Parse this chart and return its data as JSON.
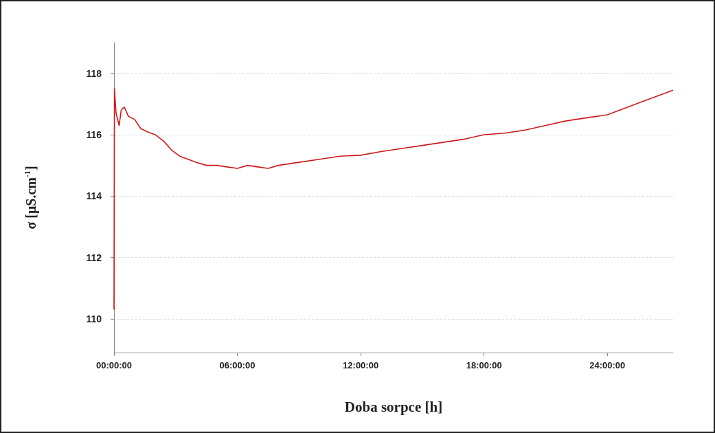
{
  "chart_data": {
    "type": "line",
    "xlabel": "Doba sorpce [h]",
    "ylabel": "σ [μS.cm$^{-1}$]",
    "series": [
      {
        "color": "#cc1a1a",
        "x": [
          0,
          0.02,
          0.1,
          0.25,
          0.35,
          0.5,
          0.7,
          1,
          1.3,
          1.6,
          2,
          2.4,
          2.8,
          3.2,
          3.6,
          4,
          4.5,
          5,
          5.5,
          6,
          6.5,
          7,
          7.5,
          8,
          9,
          10,
          11,
          12,
          13,
          14,
          15,
          16,
          17,
          18,
          19,
          20,
          21,
          22,
          23,
          24,
          25,
          26,
          27.2
        ],
        "values": [
          110.3,
          117.5,
          116.7,
          116.3,
          116.8,
          116.9,
          116.6,
          116.5,
          116.2,
          116.1,
          116.0,
          115.8,
          115.5,
          115.3,
          115.2,
          115.1,
          115.0,
          115.0,
          114.95,
          114.9,
          115.0,
          114.95,
          114.9,
          115.0,
          115.1,
          115.2,
          115.3,
          115.33,
          115.45,
          115.55,
          115.65,
          115.75,
          115.85,
          116.0,
          116.05,
          116.15,
          116.3,
          116.45,
          116.55,
          116.65,
          116.9,
          117.15,
          117.45
        ]
      }
    ],
    "xlim": [
      0,
      27.2
    ],
    "xticks": [
      {
        "value": 0,
        "label": "00:00:00"
      },
      {
        "value": 6,
        "label": "06:00:00"
      },
      {
        "value": 12,
        "label": "12:00:00"
      },
      {
        "value": 18,
        "label": "18:00:00"
      },
      {
        "value": 24,
        "label": "24:00:00"
      }
    ],
    "ylim": [
      108.9,
      119.0
    ],
    "yticks": [
      110,
      112,
      114,
      116,
      118
    ],
    "grid": "y",
    "marker": "none",
    "line_style": "solid"
  }
}
